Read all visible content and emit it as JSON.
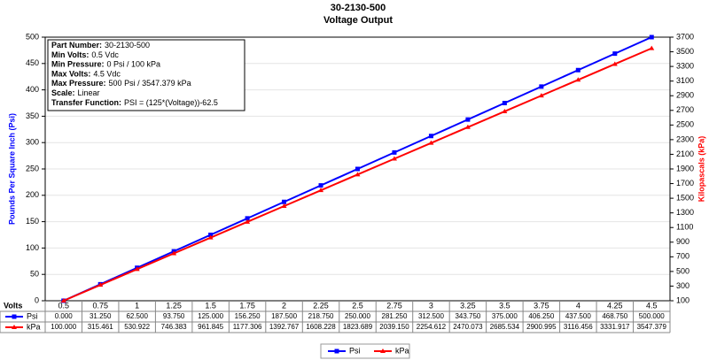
{
  "chart_data": {
    "type": "line",
    "title": "30-2130-500",
    "subtitle": "Voltage Output",
    "x_label": "Volts",
    "y_label": "Pounds Per Square Inch (Psi)",
    "y2_label": "Kilopascals (kPa)",
    "categories": [
      "0.5",
      "0.75",
      "1",
      "1.25",
      "1.5",
      "1.75",
      "2",
      "2.25",
      "2.5",
      "2.75",
      "3",
      "3.25",
      "3.5",
      "3.75",
      "4",
      "4.25",
      "4.5"
    ],
    "series": [
      {
        "name": "Psi",
        "color": "#0000ff",
        "marker": "square",
        "values": [
          0,
          31.25,
          62.5,
          93.75,
          125,
          156.25,
          187.5,
          218.75,
          250,
          281.25,
          312.5,
          343.75,
          375,
          406.25,
          437.5,
          468.75,
          500
        ],
        "value_labels": [
          "0.000",
          "31.250",
          "62.500",
          "93.750",
          "125.000",
          "156.250",
          "187.500",
          "218.750",
          "250.000",
          "281.250",
          "312.500",
          "343.750",
          "375.000",
          "406.250",
          "437.500",
          "468.750",
          "500.000"
        ]
      },
      {
        "name": "kPa",
        "color": "#ff0000",
        "marker": "triangle",
        "axis": "y2",
        "values": [
          100,
          315.461,
          530.922,
          746.383,
          961.845,
          1177.306,
          1392.767,
          1608.228,
          1823.689,
          2039.15,
          2254.612,
          2470.073,
          2685.534,
          2900.995,
          3116.456,
          3331.917,
          3547.379
        ],
        "value_labels": [
          "100.000",
          "315.461",
          "530.922",
          "746.383",
          "961.845",
          "1177.306",
          "1392.767",
          "1608.228",
          "1823.689",
          "2039.150",
          "2254.612",
          "2470.073",
          "2685.534",
          "2900.995",
          "3116.456",
          "3331.917",
          "3547.379"
        ]
      }
    ],
    "ylim": [
      0,
      500
    ],
    "yticks": [
      0,
      50,
      100,
      150,
      200,
      250,
      300,
      350,
      400,
      450,
      500
    ],
    "y2lim": [
      100,
      3700
    ],
    "y2ticks": [
      100,
      300,
      500,
      700,
      900,
      1100,
      1300,
      1500,
      1700,
      1900,
      2100,
      2300,
      2500,
      2700,
      2900,
      3100,
      3300,
      3500,
      3700
    ],
    "grid": true,
    "legend": "bottom",
    "annotations": [
      {
        "label": "Part Number:",
        "text": "30-2130-500"
      },
      {
        "label": "Min Volts:",
        "text": "0.5 Vdc"
      },
      {
        "label": "Min Pressure:",
        "text": "0 Psi / 100 kPa"
      },
      {
        "label": "Max Volts:",
        "text": "4.5 Vdc"
      },
      {
        "label": "Max Pressure:",
        "text": "500 Psi / 3547.379 kPa"
      },
      {
        "label": "Scale:",
        "text": "Linear"
      },
      {
        "label": "Transfer Function:",
        "text": "PSI = (125*(Voltage))-62.5"
      }
    ]
  }
}
